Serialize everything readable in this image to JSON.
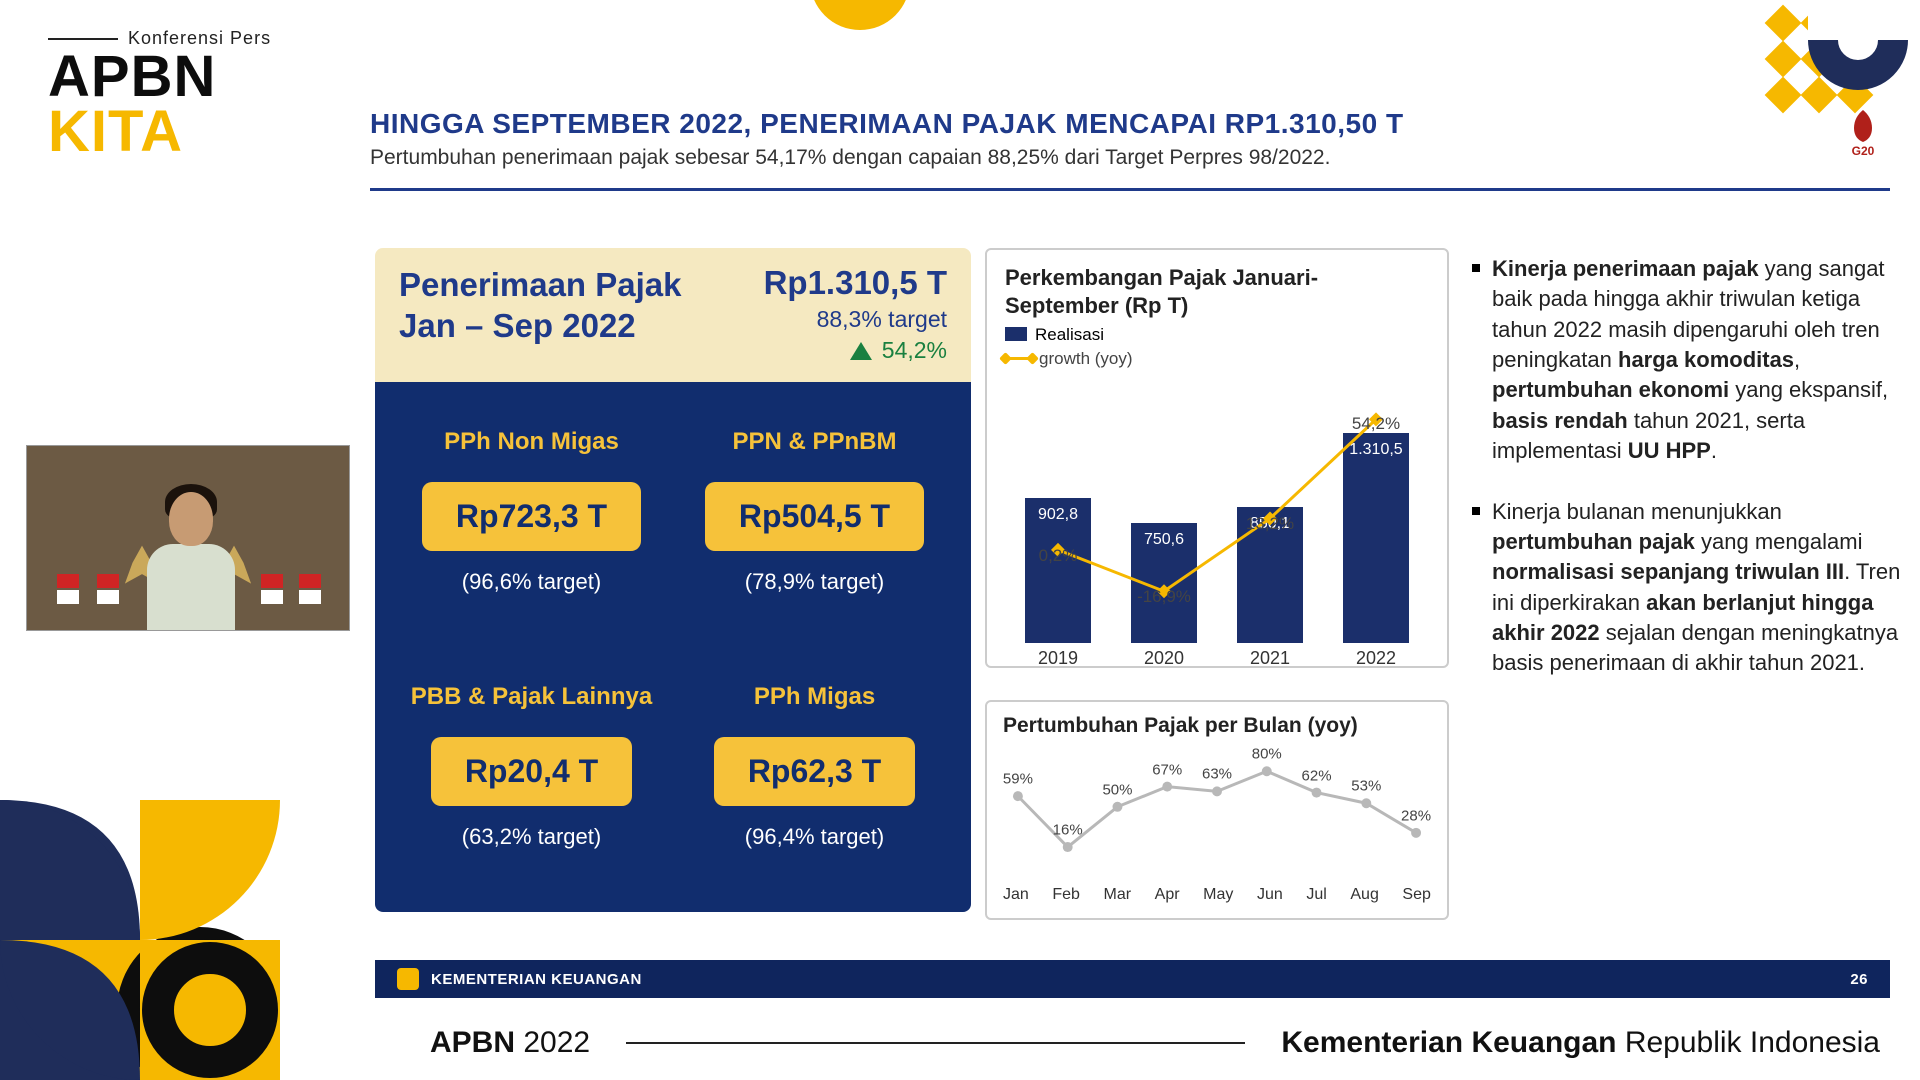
{
  "logo": {
    "tagline": "Konferensi Pers",
    "line1": "APBN",
    "line2": "KITA"
  },
  "slide": {
    "title": "HINGGA SEPTEMBER 2022, PENERIMAAN PAJAK MENCAPAI RP1.310,50 T",
    "subtitle": "Pertumbuhan penerimaan pajak sebesar 54,17% dengan capaian 88,25% dari Target Perpres 98/2022.",
    "g20_label": "G20",
    "page_number": "26",
    "ministry": "KEMENTERIAN KEUANGAN"
  },
  "blue_panel": {
    "head_left_l1": "Penerimaan Pajak",
    "head_left_l2": "Jan – Sep 2022",
    "amount": "Rp1.310,5 T",
    "target_line": "88,3% target",
    "growth": "54,2%",
    "colors": {
      "head_bg": "#f5e9c1",
      "body_bg": "#112d6e",
      "pill_bg": "#f6c23a",
      "label": "#f6c23a",
      "text_head": "#1f3a8a"
    },
    "cells": [
      {
        "label": "PPh Non Migas",
        "amount": "Rp723,3 T",
        "target": "(96,6% target)"
      },
      {
        "label": "PPN & PPnBM",
        "amount": "Rp504,5 T",
        "target": "(78,9% target)"
      },
      {
        "label": "PBB & Pajak Lainnya",
        "amount": "Rp20,4 T",
        "target": "(63,2% target)"
      },
      {
        "label": "PPh Migas",
        "amount": "Rp62,3 T",
        "target": "(96,4% target)"
      }
    ]
  },
  "year_chart": {
    "title": "Perkembangan Pajak Januari-September (Rp T)",
    "legend_realisasi": "Realisasi",
    "legend_growth": "growth (yoy)",
    "type": "bar+line",
    "bar_color": "#1b2f6b",
    "line_color": "#f6b800",
    "bg": "#ffffff",
    "x_labels": [
      "2019",
      "2020",
      "2021",
      "2022"
    ],
    "bar_values": [
      902.8,
      750.6,
      850.1,
      1310.5
    ],
    "bar_value_labels": [
      "902,8",
      "750,6",
      "850,1",
      "1.310,5"
    ],
    "bar_ylim": [
      0,
      1400
    ],
    "growth_values": [
      0.2,
      -16.9,
      13.2,
      54.2
    ],
    "growth_labels": [
      "0,2%",
      "-16,9%",
      "13,2%",
      "54,2%"
    ],
    "growth_ylim": [
      -25,
      60
    ]
  },
  "month_chart": {
    "title": "Pertumbuhan Pajak per Bulan (yoy)",
    "type": "line",
    "line_color": "#b8b8b8",
    "marker_color": "#b8b8b8",
    "x_labels": [
      "Jan",
      "Feb",
      "Mar",
      "Apr",
      "May",
      "Jun",
      "Jul",
      "Aug",
      "Sep"
    ],
    "values": [
      59,
      16,
      50,
      67,
      63,
      80,
      62,
      53,
      28
    ],
    "value_labels": [
      "59%",
      "16%",
      "50%",
      "67%",
      "63%",
      "80%",
      "62%",
      "53%",
      "28%"
    ],
    "ylim": [
      0,
      90
    ]
  },
  "bullets": {
    "items": [
      {
        "prefix": "Kinerja penerimaan pajak",
        "seg1": " yang sangat baik pada hingga akhir triwulan ketiga tahun 2022 masih dipengaruhi oleh tren peningkatan ",
        "b1": "harga komoditas",
        "seg2": ", ",
        "b2": "pertumbuhan ekonomi",
        "seg3": " yang ekspansif, ",
        "b3": "basis rendah",
        "seg4": " tahun 2021, serta implementasi  ",
        "b4": "UU HPP",
        "seg5": "."
      },
      {
        "seg0": "Kinerja bulanan menunjukkan ",
        "b0": "pertumbuhan pajak",
        "seg1": " yang mengalami ",
        "b1": "normalisasi sepanjang triwulan III",
        "seg2": ". Tren ini diperkirakan ",
        "b2": "akan berlanjut hingga akhir 2022",
        "seg3": " sejalan dengan meningkatnya basis penerimaan di akhir tahun 2021."
      }
    ]
  },
  "bottom": {
    "left_bold": "APBN",
    "left_rest": " 2022",
    "right_bold": "Kementerian Keuangan",
    "right_rest": " Republik Indonesia"
  }
}
